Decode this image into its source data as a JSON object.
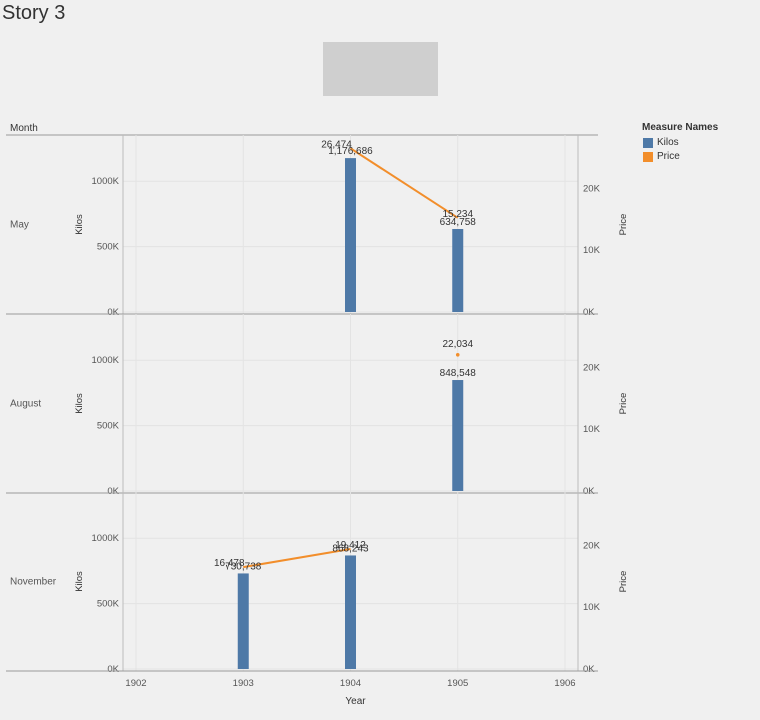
{
  "story_title": "Story 3",
  "legend": {
    "title": "Measure Names",
    "items": [
      {
        "label": "Kilos",
        "color": "#4e79a7"
      },
      {
        "label": "Price",
        "color": "#f28e2b"
      }
    ]
  },
  "chart_data": {
    "type": "bar",
    "row_header": "Month",
    "xlabel": "Year",
    "x_ticks": [
      "1902",
      "1903",
      "1904",
      "1905",
      "1906"
    ],
    "left_axis_label": "Kilos",
    "right_axis_label": "Price",
    "left_ticks": [
      "0K",
      "500K",
      "1000K"
    ],
    "right_ticks": [
      "0K",
      "10K",
      "20K"
    ],
    "kilos_domain": [
      0,
      1300000
    ],
    "price_domain": [
      0,
      27500
    ],
    "panels": [
      {
        "month": "May",
        "kilos": [
          {
            "year": 1904,
            "value": 1176686,
            "label": "1,176,686"
          },
          {
            "year": 1905,
            "value": 634758,
            "label": "634,758"
          }
        ],
        "price": [
          {
            "year": 1904,
            "value": 26474,
            "label": "26,474"
          },
          {
            "year": 1905,
            "value": 15234,
            "label": "15,234"
          }
        ]
      },
      {
        "month": "August",
        "kilos": [
          {
            "year": 1905,
            "value": 848548,
            "label": "848,548"
          }
        ],
        "price": [
          {
            "year": 1905,
            "value": 22034,
            "label": "22,034"
          }
        ]
      },
      {
        "month": "November",
        "kilos": [
          {
            "year": 1903,
            "value": 730738,
            "label": "730,738"
          },
          {
            "year": 1904,
            "value": 868243,
            "label": "868,243"
          }
        ],
        "price": [
          {
            "year": 1903,
            "value": 16478,
            "label": "16,478"
          },
          {
            "year": 1904,
            "value": 19412,
            "label": "19,412"
          }
        ]
      }
    ]
  }
}
